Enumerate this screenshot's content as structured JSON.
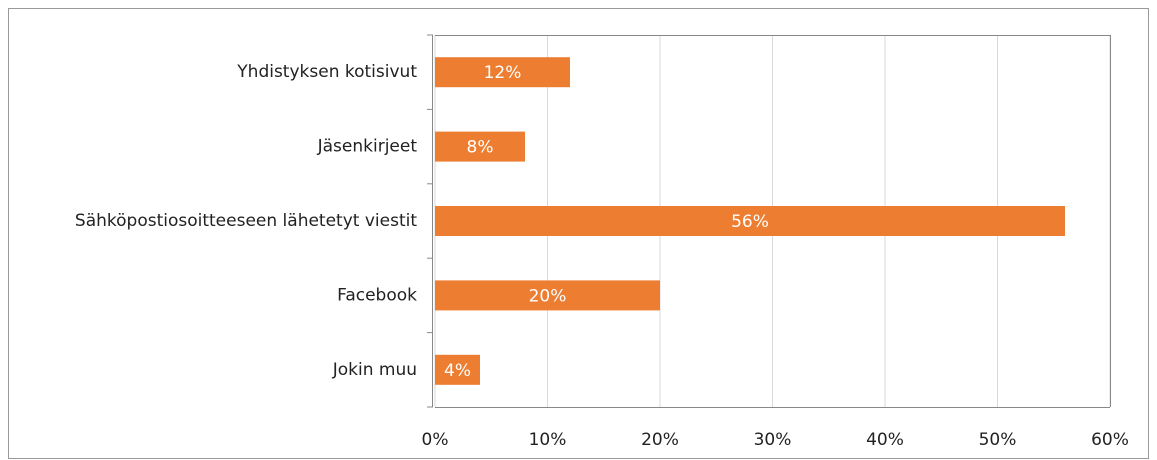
{
  "chart_data": {
    "type": "bar",
    "orientation": "horizontal",
    "categories": [
      "Yhdistyksen kotisivut",
      "Jäsenkirjeet",
      "Sähköpostiosoitteeseen lähetetyt viestit",
      "Facebook",
      "Jokin muu"
    ],
    "values": [
      12,
      8,
      56,
      20,
      4
    ],
    "value_labels": [
      "12%",
      "8%",
      "56%",
      "20%",
      "4%"
    ],
    "color": "#ed7d31",
    "xlim": [
      0,
      60
    ],
    "xticks": [
      {
        "value": 0,
        "label": "0%"
      },
      {
        "value": 10,
        "label": "10%"
      },
      {
        "value": 20,
        "label": "20%"
      },
      {
        "value": 30,
        "label": "30%"
      },
      {
        "value": 40,
        "label": "40%"
      },
      {
        "value": 50,
        "label": "50%"
      },
      {
        "value": 60,
        "label": "60%"
      }
    ],
    "grid": true
  }
}
